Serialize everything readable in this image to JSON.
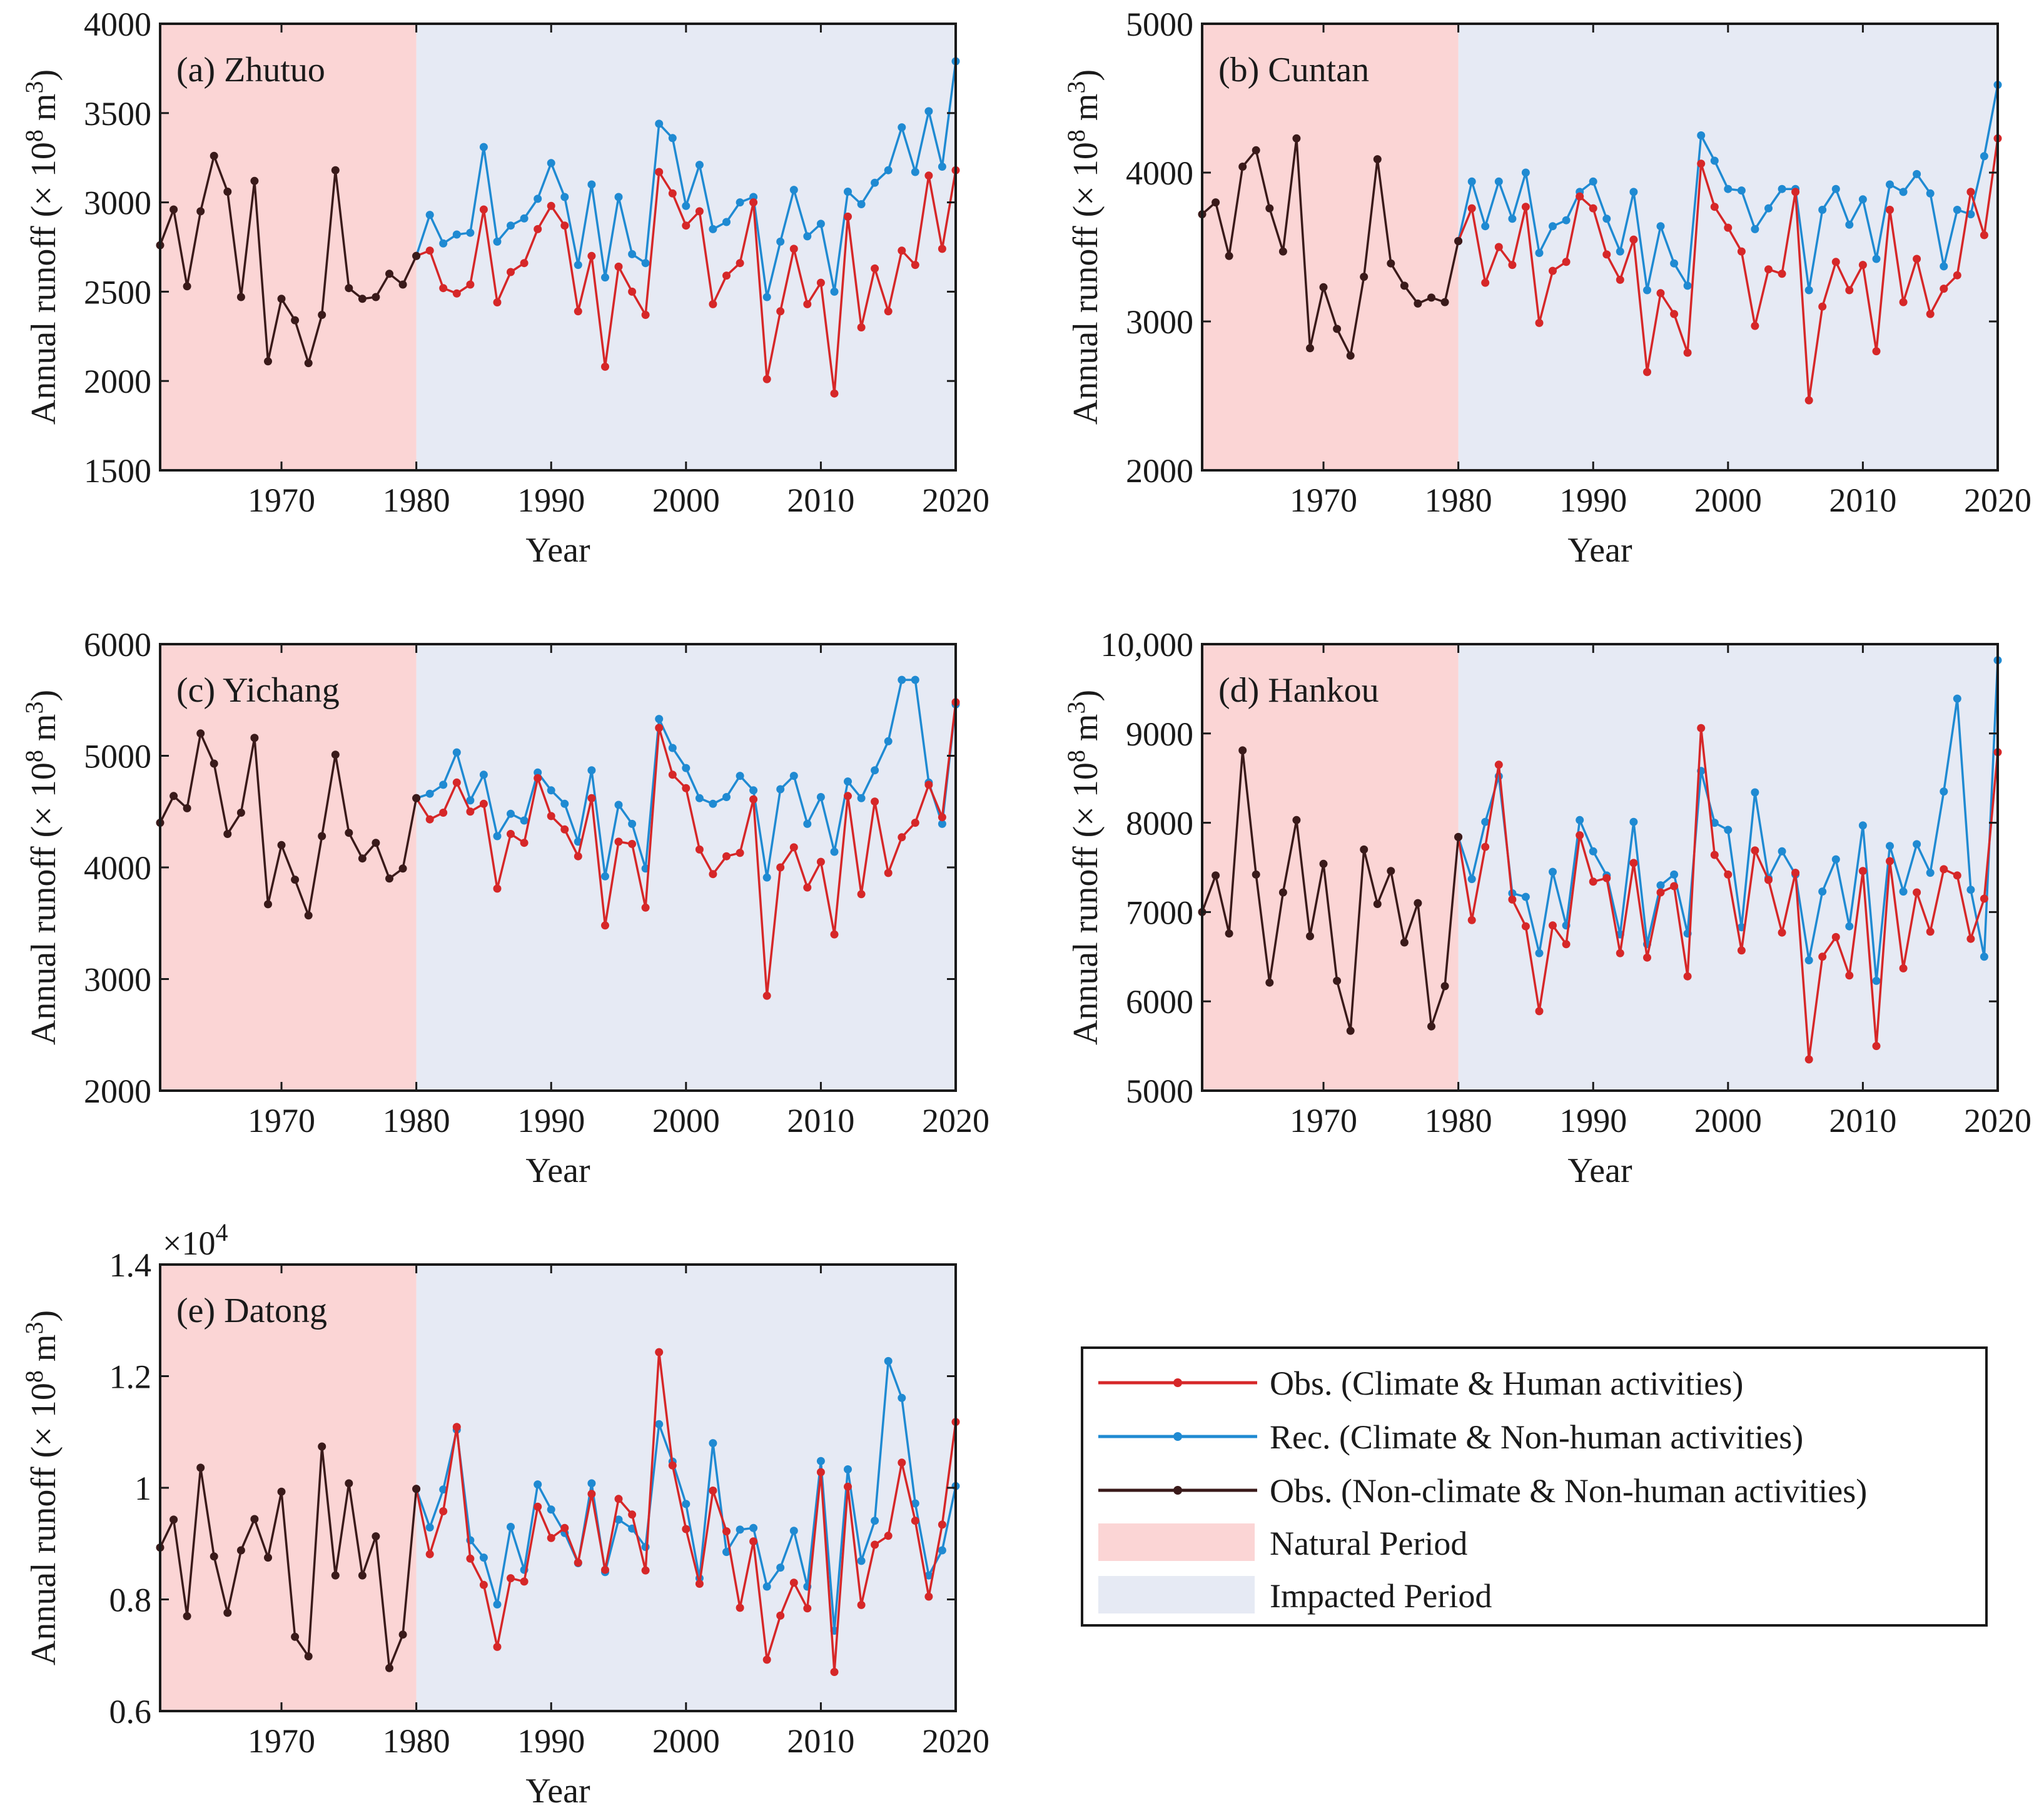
{
  "colors": {
    "obs_human": "#d62728",
    "rec": "#1f8ad2",
    "obs_natural": "#3a1a1a",
    "natural_bg": "#fbd5d5",
    "impacted_bg": "#e6eaf4"
  },
  "x_ticks": [
    "1970",
    "1980",
    "1990",
    "2000",
    "2010",
    "2020"
  ],
  "xlabel": "Year",
  "ylabel_main": "Annual runoff (× 10",
  "ylabel_sup8": "8",
  "ylabel_unit": " m",
  "ylabel_sup3": "3",
  "ylabel_close": ")",
  "legend": {
    "obs_human": "Obs. (Climate & Human activities)",
    "rec": "Rec. (Climate & Non-human activities)",
    "obs_natural": "Obs. (Non-climate & Non-human activities)",
    "natural_period": "Natural Period",
    "impacted_period": "Impacted Period"
  },
  "chart_data": [
    {
      "type": "line",
      "title": "(a) Zhutuo",
      "xlabel": "Year",
      "ylabel": "Annual runoff (× 10^8 m^3)",
      "xlim": [
        1961,
        2020
      ],
      "ylim": [
        1500,
        4000
      ],
      "yticks": [
        "1500",
        "2000",
        "2500",
        "3000",
        "3500",
        "4000"
      ],
      "ytick_values": [
        1500,
        2000,
        2500,
        3000,
        3500,
        4000
      ],
      "natural_period": [
        1961,
        1980
      ],
      "impacted_period": [
        1980,
        2020
      ],
      "natural": {
        "x_start": 1961,
        "values": [
          2760,
          2960,
          2530,
          2950,
          3260,
          3060,
          2470,
          3120,
          2110,
          2460,
          2340,
          2100,
          2370,
          3180,
          2520,
          2460,
          2470,
          2600,
          2540,
          2700
        ]
      },
      "obs": {
        "x_start": 1980,
        "values": [
          2700,
          2730,
          2520,
          2490,
          2540,
          2960,
          2440,
          2610,
          2660,
          2850,
          2980,
          2870,
          2390,
          2700,
          2080,
          2640,
          2500,
          2370,
          3170,
          3050,
          2870,
          2950,
          2430,
          2590,
          2660,
          3000,
          2010,
          2390,
          2740,
          2430,
          2550,
          1930,
          2920,
          2300,
          2630,
          2390,
          2730,
          2650,
          3150,
          2740,
          3180
        ]
      },
      "rec": {
        "x_start": 1980,
        "values": [
          2700,
          2930,
          2770,
          2820,
          2830,
          3310,
          2780,
          2870,
          2910,
          3020,
          3220,
          3030,
          2650,
          3100,
          2580,
          3030,
          2710,
          2660,
          3440,
          3360,
          2980,
          3210,
          2850,
          2890,
          3000,
          3030,
          2470,
          2780,
          3070,
          2810,
          2880,
          2500,
          3060,
          2990,
          3110,
          3180,
          3420,
          3170,
          3510,
          3200,
          3790
        ]
      }
    },
    {
      "type": "line",
      "title": "(b) Cuntan",
      "xlabel": "Year",
      "ylabel": "Annual runoff (× 10^8 m^3)",
      "xlim": [
        1961,
        2020
      ],
      "ylim": [
        2000,
        5000
      ],
      "yticks": [
        "2000",
        "3000",
        "4000",
        "5000"
      ],
      "ytick_values": [
        2000,
        3000,
        4000,
        5000
      ],
      "natural_period": [
        1961,
        1980
      ],
      "impacted_period": [
        1980,
        2020
      ],
      "natural": {
        "x_start": 1961,
        "values": [
          3720,
          3800,
          3440,
          4040,
          4150,
          3760,
          3470,
          4230,
          2820,
          3230,
          2950,
          2770,
          3300,
          4090,
          3390,
          3240,
          3120,
          3160,
          3130,
          3540
        ]
      },
      "obs": {
        "x_start": 1980,
        "values": [
          3540,
          3760,
          3260,
          3500,
          3380,
          3770,
          2990,
          3340,
          3400,
          3840,
          3760,
          3450,
          3280,
          3550,
          2660,
          3190,
          3050,
          2790,
          4060,
          3770,
          3630,
          3470,
          2970,
          3350,
          3320,
          3870,
          2470,
          3100,
          3400,
          3210,
          3380,
          2800,
          3750,
          3130,
          3420,
          3050,
          3220,
          3310,
          3870,
          3580,
          4230
        ]
      },
      "rec": {
        "x_start": 1980,
        "values": [
          3540,
          3940,
          3640,
          3940,
          3690,
          4000,
          3460,
          3640,
          3680,
          3870,
          3940,
          3690,
          3470,
          3870,
          3210,
          3640,
          3390,
          3240,
          4250,
          4080,
          3890,
          3880,
          3620,
          3760,
          3890,
          3890,
          3210,
          3750,
          3890,
          3650,
          3820,
          3420,
          3920,
          3870,
          3990,
          3860,
          3370,
          3750,
          3720,
          4110,
          4590
        ]
      }
    },
    {
      "type": "line",
      "title": "(c) Yichang",
      "xlabel": "Year",
      "ylabel": "Annual runoff (× 10^8 m^3)",
      "xlim": [
        1961,
        2020
      ],
      "ylim": [
        2000,
        6000
      ],
      "yticks": [
        "2000",
        "3000",
        "4000",
        "5000",
        "6000"
      ],
      "ytick_values": [
        2000,
        3000,
        4000,
        5000,
        6000
      ],
      "natural_period": [
        1961,
        1980
      ],
      "impacted_period": [
        1980,
        2020
      ],
      "natural": {
        "x_start": 1961,
        "values": [
          4400,
          4640,
          4530,
          5200,
          4930,
          4300,
          4490,
          5160,
          3670,
          4200,
          3890,
          3570,
          4280,
          5010,
          4310,
          4080,
          4220,
          3900,
          3990,
          4620
        ]
      },
      "obs": {
        "x_start": 1980,
        "values": [
          4620,
          4430,
          4490,
          4760,
          4500,
          4570,
          3810,
          4300,
          4220,
          4800,
          4460,
          4340,
          4100,
          4620,
          3480,
          4230,
          4210,
          3640,
          5250,
          4830,
          4710,
          4160,
          3940,
          4100,
          4130,
          4610,
          2850,
          4000,
          4180,
          3820,
          4050,
          3400,
          4640,
          3760,
          4590,
          3950,
          4270,
          4400,
          4740,
          4450,
          5480
        ]
      },
      "rec": {
        "x_start": 1980,
        "values": [
          4620,
          4660,
          4740,
          5030,
          4600,
          4830,
          4280,
          4480,
          4420,
          4850,
          4690,
          4570,
          4230,
          4870,
          3920,
          4560,
          4390,
          3990,
          5330,
          5070,
          4890,
          4620,
          4570,
          4630,
          4820,
          4690,
          3910,
          4700,
          4820,
          4390,
          4630,
          4140,
          4770,
          4620,
          4870,
          5130,
          5680,
          5680,
          4760,
          4390,
          5460
        ]
      }
    },
    {
      "type": "line",
      "title": "(d) Hankou",
      "xlabel": "Year",
      "ylabel": "Annual runoff (× 10^8 m^3)",
      "xlim": [
        1961,
        2020
      ],
      "ylim": [
        5000,
        10000
      ],
      "yticks": [
        "5000",
        "6000",
        "7000",
        "8000",
        "9000",
        "10,000"
      ],
      "ytick_values": [
        5000,
        6000,
        7000,
        8000,
        9000,
        10000
      ],
      "natural_period": [
        1961,
        1980
      ],
      "impacted_period": [
        1980,
        2020
      ],
      "natural": {
        "x_start": 1961,
        "values": [
          7000,
          7410,
          6760,
          8810,
          7420,
          6210,
          7220,
          8030,
          6730,
          7540,
          6230,
          5670,
          7700,
          7090,
          7460,
          6660,
          7100,
          5720,
          6170,
          7840
        ]
      },
      "obs": {
        "x_start": 1980,
        "values": [
          7840,
          6910,
          7730,
          8650,
          7140,
          6840,
          5890,
          6850,
          6640,
          7860,
          7340,
          7380,
          6540,
          7550,
          6490,
          7220,
          7290,
          6280,
          9060,
          7640,
          7420,
          6570,
          7690,
          7360,
          6770,
          7440,
          5350,
          6500,
          6720,
          6290,
          7460,
          5500,
          7570,
          6370,
          7220,
          6780,
          7480,
          7410,
          6700,
          7150,
          8790
        ]
      },
      "rec": {
        "x_start": 1980,
        "values": [
          7840,
          7370,
          8010,
          8520,
          7210,
          7170,
          6540,
          7450,
          6850,
          8030,
          7680,
          7410,
          6750,
          8010,
          6640,
          7300,
          7420,
          6760,
          8580,
          8000,
          7920,
          6830,
          8340,
          7380,
          7680,
          7420,
          6460,
          7230,
          7590,
          6840,
          7970,
          6230,
          7740,
          7230,
          7760,
          7440,
          8350,
          9390,
          7250,
          6500,
          9820
        ]
      }
    },
    {
      "type": "line",
      "title": "(e) Datong",
      "xlabel": "Year",
      "ylabel": "Annual runoff (× 10^8 m^3)",
      "exponent_base": "×10",
      "exponent_power": "4",
      "xlim": [
        1961,
        2020
      ],
      "ylim": [
        0.6,
        1.4
      ],
      "yticks": [
        "0.6",
        "0.8",
        "1",
        "1.2",
        "1.4"
      ],
      "ytick_values": [
        0.6,
        0.8,
        1.0,
        1.2,
        1.4
      ],
      "natural_period": [
        1961,
        1980
      ],
      "impacted_period": [
        1980,
        2020
      ],
      "natural": {
        "x_start": 1961,
        "values": [
          0.893,
          0.943,
          0.77,
          1.036,
          0.877,
          0.776,
          0.888,
          0.944,
          0.875,
          0.993,
          0.733,
          0.698,
          1.074,
          0.843,
          1.008,
          0.843,
          0.913,
          0.677,
          0.737,
          0.998
        ]
      },
      "obs": {
        "x_start": 1980,
        "values": [
          0.998,
          0.881,
          0.958,
          1.109,
          0.873,
          0.826,
          0.715,
          0.838,
          0.832,
          0.966,
          0.91,
          0.928,
          0.866,
          0.989,
          0.853,
          0.98,
          0.952,
          0.852,
          1.243,
          1.04,
          0.926,
          0.828,
          0.995,
          0.922,
          0.785,
          0.904,
          0.692,
          0.771,
          0.83,
          0.784,
          1.028,
          0.67,
          1.002,
          0.79,
          0.898,
          0.914,
          1.045,
          0.941,
          0.805,
          0.934,
          1.118
        ]
      },
      "rec": {
        "x_start": 1980,
        "values": [
          0.998,
          0.929,
          0.997,
          1.104,
          0.906,
          0.875,
          0.791,
          0.93,
          0.853,
          1.006,
          0.961,
          0.919,
          0.865,
          1.008,
          0.849,
          0.943,
          0.927,
          0.894,
          1.114,
          1.047,
          0.971,
          0.838,
          1.08,
          0.885,
          0.925,
          0.928,
          0.823,
          0.857,
          0.923,
          0.823,
          1.048,
          0.744,
          1.033,
          0.869,
          0.941,
          1.227,
          1.161,
          0.972,
          0.843,
          0.888,
          1.003
        ]
      }
    }
  ]
}
